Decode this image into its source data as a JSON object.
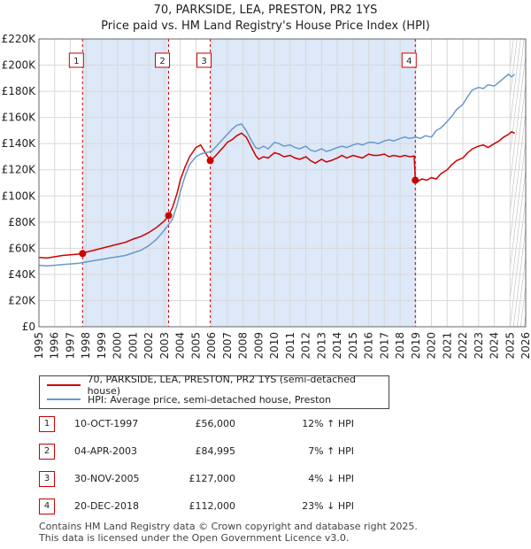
{
  "title": "70, PARKSIDE, LEA, PRESTON, PR2 1YS",
  "subtitle": "Price paid vs. HM Land Registry's House Price Index (HPI)",
  "colors": {
    "price_line": "#cc0000",
    "hpi_line": "#6699cc",
    "shade": "#dde8f8",
    "grid": "#d8d8d8"
  },
  "legend": {
    "price_label": "70, PARKSIDE, LEA, PRESTON, PR2 1YS (semi-detached house)",
    "hpi_label": "HPI: Average price, semi-detached house, Preston"
  },
  "sales": [
    {
      "num": "1",
      "date": "10-OCT-1997",
      "price": "£56,000",
      "hpi": "12% ↑ HPI"
    },
    {
      "num": "2",
      "date": "04-APR-2003",
      "price": "£84,995",
      "hpi": "7% ↑ HPI"
    },
    {
      "num": "3",
      "date": "30-NOV-2005",
      "price": "£127,000",
      "hpi": "4% ↓ HPI"
    },
    {
      "num": "4",
      "date": "20-DEC-2018",
      "price": "£112,000",
      "hpi": "23% ↓ HPI"
    }
  ],
  "footer": {
    "line1": "Contains HM Land Registry data © Crown copyright and database right 2025.",
    "line2": "This data is licensed under the Open Government Licence v3.0."
  },
  "chart_data": {
    "type": "line",
    "title": "70, PARKSIDE, LEA, PRESTON, PR2 1YS",
    "subtitle": "Price paid vs. HM Land Registry's House Price Index (HPI)",
    "xlim": [
      1995,
      2026
    ],
    "ylim": [
      0,
      220000
    ],
    "x_ticks": [
      1995,
      1996,
      1997,
      1998,
      1999,
      2000,
      2001,
      2002,
      2003,
      2004,
      2005,
      2006,
      2007,
      2008,
      2009,
      2010,
      2011,
      2012,
      2013,
      2014,
      2015,
      2016,
      2017,
      2018,
      2019,
      2020,
      2021,
      2022,
      2023,
      2024,
      2025,
      2026
    ],
    "y_ticks": [
      0,
      20000,
      40000,
      60000,
      80000,
      100000,
      120000,
      140000,
      160000,
      180000,
      200000,
      220000
    ],
    "y_tick_labels": [
      "£0",
      "£20K",
      "£40K",
      "£60K",
      "£80K",
      "£100K",
      "£120K",
      "£140K",
      "£160K",
      "£180K",
      "£200K",
      "£220K"
    ],
    "grid": true,
    "shaded_periods": [
      [
        1997.78,
        2003.26
      ],
      [
        2005.91,
        2018.97
      ]
    ],
    "future_hatch_from": 2025.0,
    "sale_markers": [
      {
        "label": "1",
        "x": 1997.78,
        "y": 56000
      },
      {
        "label": "2",
        "x": 2003.26,
        "y": 84995
      },
      {
        "label": "3",
        "x": 2005.91,
        "y": 127000
      },
      {
        "label": "4",
        "x": 2018.97,
        "y": 112000
      }
    ],
    "series": [
      {
        "name": "70, PARKSIDE, LEA, PRESTON, PR2 1YS (semi-detached house)",
        "x": [
          1995.0,
          1995.5,
          1996.0,
          1996.5,
          1997.0,
          1997.5,
          1997.78,
          1998.0,
          1998.5,
          1999.0,
          1999.5,
          2000.0,
          2000.5,
          2001.0,
          2001.5,
          2002.0,
          2002.5,
          2003.0,
          2003.26,
          2003.5,
          2003.8,
          2004.0,
          2004.3,
          2004.6,
          2005.0,
          2005.3,
          2005.6,
          2005.91,
          2006.2,
          2006.5,
          2006.8,
          2007.0,
          2007.3,
          2007.6,
          2007.9,
          2008.2,
          2008.5,
          2008.8,
          2009.0,
          2009.3,
          2009.6,
          2010.0,
          2010.3,
          2010.6,
          2011.0,
          2011.3,
          2011.6,
          2012.0,
          2012.3,
          2012.6,
          2013.0,
          2013.3,
          2013.6,
          2014.0,
          2014.3,
          2014.6,
          2015.0,
          2015.3,
          2015.6,
          2016.0,
          2016.3,
          2016.6,
          2017.0,
          2017.3,
          2017.6,
          2018.0,
          2018.3,
          2018.6,
          2018.9,
          2018.97,
          2019.1,
          2019.4,
          2019.7,
          2020.0,
          2020.3,
          2020.6,
          2021.0,
          2021.3,
          2021.6,
          2022.0,
          2022.3,
          2022.6,
          2023.0,
          2023.3,
          2023.6,
          2024.0,
          2024.3,
          2024.6,
          2024.9,
          2025.1,
          2025.3
        ],
        "y": [
          53000,
          52500,
          53500,
          54500,
          55000,
          55500,
          56000,
          57000,
          58500,
          60000,
          61500,
          63000,
          64500,
          67000,
          69000,
          72000,
          76000,
          81000,
          84995,
          91000,
          102000,
          112000,
          122000,
          130000,
          137000,
          139000,
          133000,
          127000,
          130000,
          134000,
          138000,
          141000,
          143000,
          146000,
          148000,
          145000,
          138000,
          131000,
          128000,
          130000,
          129000,
          133000,
          132000,
          130000,
          131000,
          129000,
          128000,
          130000,
          127000,
          125000,
          128000,
          126000,
          127000,
          129000,
          131000,
          129000,
          131000,
          130000,
          129000,
          132000,
          131000,
          131000,
          132000,
          130000,
          131000,
          130000,
          131000,
          130000,
          130500,
          112000,
          111000,
          113000,
          112000,
          114000,
          113000,
          117000,
          120000,
          124000,
          127000,
          129000,
          133000,
          136000,
          138000,
          139000,
          137000,
          140000,
          142000,
          145000,
          147000,
          149000,
          148000
        ]
      },
      {
        "name": "HPI: Average price, semi-detached house, Preston",
        "x": [
          1995.0,
          1995.5,
          1996.0,
          1996.5,
          1997.0,
          1997.5,
          1998.0,
          1998.5,
          1999.0,
          1999.5,
          2000.0,
          2000.5,
          2001.0,
          2001.5,
          2002.0,
          2002.5,
          2003.0,
          2003.5,
          2003.8,
          2004.0,
          2004.3,
          2004.6,
          2005.0,
          2005.3,
          2005.6,
          2006.0,
          2006.3,
          2006.6,
          2007.0,
          2007.3,
          2007.6,
          2007.9,
          2008.2,
          2008.5,
          2008.8,
          2009.0,
          2009.3,
          2009.6,
          2010.0,
          2010.3,
          2010.6,
          2011.0,
          2011.3,
          2011.6,
          2012.0,
          2012.3,
          2012.6,
          2013.0,
          2013.3,
          2013.6,
          2014.0,
          2014.3,
          2014.6,
          2015.0,
          2015.3,
          2015.6,
          2016.0,
          2016.3,
          2016.6,
          2017.0,
          2017.3,
          2017.6,
          2018.0,
          2018.3,
          2018.6,
          2019.0,
          2019.3,
          2019.6,
          2020.0,
          2020.3,
          2020.6,
          2021.0,
          2021.3,
          2021.6,
          2022.0,
          2022.3,
          2022.6,
          2023.0,
          2023.3,
          2023.6,
          2024.0,
          2024.3,
          2024.6,
          2024.9,
          2025.1,
          2025.3
        ],
        "y": [
          47000,
          46500,
          47000,
          47500,
          48000,
          48500,
          49500,
          50500,
          51500,
          52500,
          53500,
          54500,
          56500,
          58500,
          62000,
          67000,
          74000,
          82000,
          93000,
          103000,
          115000,
          124000,
          130000,
          132000,
          133000,
          134000,
          138000,
          142000,
          147000,
          151000,
          154000,
          155000,
          150000,
          143000,
          137000,
          136000,
          138000,
          136000,
          141000,
          140000,
          138000,
          139000,
          137000,
          136000,
          138000,
          135000,
          134000,
          136000,
          134000,
          135000,
          137000,
          138000,
          137000,
          139000,
          140000,
          139000,
          141000,
          141000,
          140000,
          142000,
          143000,
          142000,
          144000,
          145000,
          144000,
          145000,
          144000,
          146000,
          145000,
          150000,
          152000,
          157000,
          161000,
          166000,
          170000,
          176000,
          181000,
          183000,
          182000,
          185000,
          184000,
          187000,
          190000,
          193000,
          191000,
          193000
        ]
      }
    ]
  }
}
